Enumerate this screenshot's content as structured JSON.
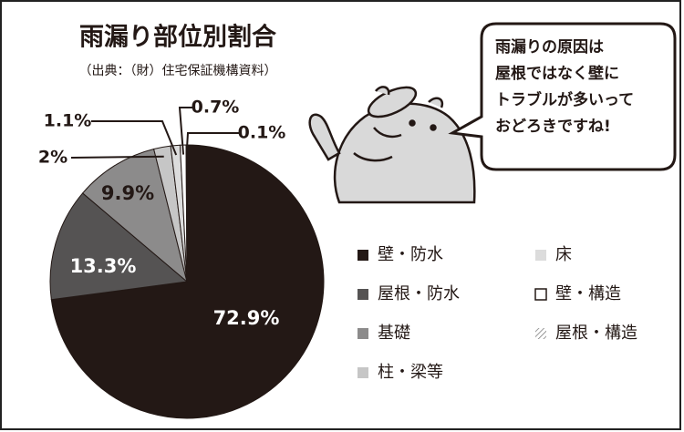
{
  "chart_data": {
    "type": "pie",
    "title": "雨漏り部位別割合",
    "subtitle": "（出典：（財）住宅保証機構資料）",
    "categories": [
      "壁・防水",
      "屋根・防水",
      "基礎",
      "柱・梁等",
      "床",
      "壁・構造",
      "屋根・構造"
    ],
    "values": [
      72.9,
      13.3,
      9.9,
      2,
      1.1,
      0.7,
      0.1
    ],
    "value_labels": [
      "72.9%",
      "13.3%",
      "9.9%",
      "2%",
      "1.1%",
      "0.7%",
      "0.1%"
    ],
    "colors": [
      "#231815",
      "#555353",
      "#8c8b8b",
      "#c6c6c6",
      "#dcdcdc",
      "#ffffff",
      "#ffffff"
    ],
    "hatch": [
      false,
      false,
      false,
      false,
      false,
      false,
      true
    ]
  },
  "speech_bubble": {
    "lines": [
      "雨漏りの原因は",
      "屋根ではなく壁に",
      "トラブルが多いって",
      "おどろきですね!"
    ]
  }
}
